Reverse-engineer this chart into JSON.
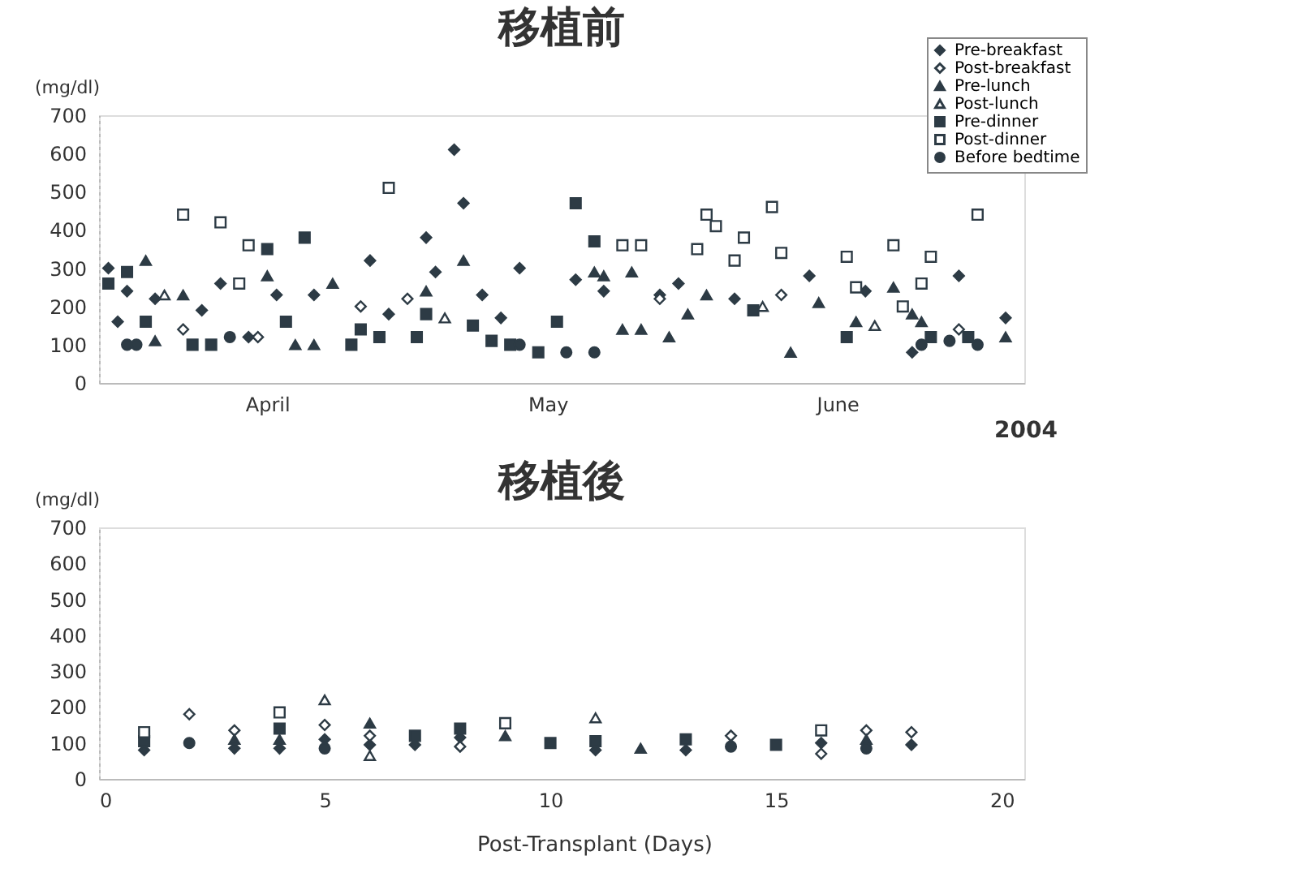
{
  "chart_data": [
    {
      "type": "scatter",
      "title": "移植前",
      "ylabel": "(mg/dl)",
      "xlabel": "2004",
      "xlim": [
        "2004-03-28",
        "2004-07-05"
      ],
      "xticks": [
        {
          "value": "2004-04-15",
          "label": "April"
        },
        {
          "value": "2004-05-15",
          "label": "May"
        },
        {
          "value": "2004-06-15",
          "label": "June"
        }
      ],
      "ylim": [
        0,
        700
      ],
      "yticks": [
        0,
        100,
        200,
        300,
        400,
        500,
        600,
        700
      ],
      "grid": false,
      "legend": "top right",
      "series": [
        {
          "name": "Pre-breakfast",
          "color": "#2d3b45",
          "marker": "diamond",
          "x": [
            "2004-03-29",
            "2004-03-30",
            "2004-03-31",
            "2004-04-03",
            "2004-04-08",
            "2004-04-10",
            "2004-04-13",
            "2004-04-16",
            "2004-04-20",
            "2004-04-26",
            "2004-04-28",
            "2004-05-02",
            "2004-05-03",
            "2004-05-05",
            "2004-05-06",
            "2004-05-08",
            "2004-05-10",
            "2004-05-12",
            "2004-05-18",
            "2004-05-21",
            "2004-05-27",
            "2004-05-29",
            "2004-06-04",
            "2004-06-12",
            "2004-06-18",
            "2004-06-23",
            "2004-06-28",
            "2004-07-03"
          ],
          "values": [
            300,
            160,
            240,
            220,
            190,
            260,
            120,
            230,
            230,
            320,
            180,
            380,
            290,
            610,
            470,
            230,
            170,
            300,
            270,
            240,
            230,
            260,
            220,
            280,
            240,
            80,
            280,
            170
          ]
        },
        {
          "name": "Post-breakfast",
          "color": "#ffffff",
          "marker": "diamond",
          "x": [
            "2004-04-06",
            "2004-04-14",
            "2004-04-25",
            "2004-04-30",
            "2004-05-27",
            "2004-06-09",
            "2004-06-28"
          ],
          "values": [
            140,
            120,
            200,
            220,
            220,
            230,
            140
          ]
        },
        {
          "name": "Pre-lunch",
          "color": "#2d3b45",
          "marker": "triangle",
          "x": [
            "2004-04-02",
            "2004-04-03",
            "2004-04-06",
            "2004-04-15",
            "2004-04-18",
            "2004-04-20",
            "2004-04-22",
            "2004-05-02",
            "2004-05-06",
            "2004-05-20",
            "2004-05-21",
            "2004-05-23",
            "2004-05-24",
            "2004-05-25",
            "2004-05-28",
            "2004-05-30",
            "2004-06-01",
            "2004-06-10",
            "2004-06-13",
            "2004-06-17",
            "2004-06-21",
            "2004-06-23",
            "2004-06-24",
            "2004-07-03"
          ],
          "values": [
            320,
            110,
            230,
            280,
            100,
            100,
            260,
            240,
            320,
            290,
            280,
            140,
            290,
            140,
            120,
            180,
            230,
            80,
            210,
            160,
            250,
            180,
            160,
            120
          ]
        },
        {
          "name": "Post-lunch",
          "color": "#ffffff",
          "marker": "triangle",
          "x": [
            "2004-04-04",
            "2004-05-04",
            "2004-06-07",
            "2004-06-19"
          ],
          "values": [
            230,
            170,
            200,
            150
          ]
        },
        {
          "name": "Pre-dinner",
          "color": "#2d3b45",
          "marker": "square",
          "x": [
            "2004-03-29",
            "2004-03-31",
            "2004-04-02",
            "2004-04-07",
            "2004-04-09",
            "2004-04-15",
            "2004-04-17",
            "2004-04-19",
            "2004-04-24",
            "2004-04-25",
            "2004-04-27",
            "2004-05-01",
            "2004-05-02",
            "2004-05-07",
            "2004-05-09",
            "2004-05-11",
            "2004-05-14",
            "2004-05-16",
            "2004-05-18",
            "2004-05-20",
            "2004-06-06",
            "2004-06-16",
            "2004-06-25",
            "2004-06-29"
          ],
          "values": [
            260,
            290,
            160,
            100,
            100,
            350,
            160,
            380,
            100,
            140,
            120,
            120,
            180,
            150,
            110,
            100,
            80,
            160,
            470,
            370,
            190,
            120,
            120,
            120
          ]
        },
        {
          "name": "Post-dinner",
          "color": "#ffffff",
          "marker": "square",
          "x": [
            "2004-04-06",
            "2004-04-10",
            "2004-04-12",
            "2004-04-13",
            "2004-04-28",
            "2004-05-23",
            "2004-05-25",
            "2004-05-31",
            "2004-06-01",
            "2004-06-02",
            "2004-06-04",
            "2004-06-05",
            "2004-06-08",
            "2004-06-09",
            "2004-06-16",
            "2004-06-17",
            "2004-06-21",
            "2004-06-22",
            "2004-06-24",
            "2004-06-25",
            "2004-06-30"
          ],
          "values": [
            440,
            420,
            260,
            360,
            510,
            360,
            360,
            350,
            440,
            410,
            320,
            380,
            460,
            340,
            330,
            250,
            360,
            200,
            260,
            330,
            440
          ]
        },
        {
          "name": "Before bedtime",
          "color": "#2d3b45",
          "marker": "circle",
          "x": [
            "2004-03-31",
            "2004-04-01",
            "2004-04-11",
            "2004-05-12",
            "2004-05-17",
            "2004-05-20",
            "2004-06-24",
            "2004-06-27",
            "2004-06-30"
          ],
          "values": [
            100,
            100,
            120,
            100,
            80,
            80,
            100,
            110,
            100
          ]
        }
      ]
    },
    {
      "type": "scatter",
      "title": "移植後",
      "ylabel": "(mg/dl)",
      "xlabel": "Post-Transplant (Days)",
      "xlim": [
        0,
        20.5
      ],
      "xticks": [
        0,
        5,
        10,
        15,
        20
      ],
      "ylim": [
        0,
        700
      ],
      "yticks": [
        0,
        100,
        200,
        300,
        400,
        500,
        600,
        700
      ],
      "grid": false,
      "x": [
        1,
        2,
        3,
        4,
        5,
        6,
        7,
        8,
        9,
        10,
        11,
        12,
        13,
        14,
        15,
        16,
        17,
        18
      ],
      "series": [
        {
          "color": "#2d3b45",
          "marker": "diamond",
          "values": [
            80,
            null,
            85,
            85,
            110,
            95,
            95,
            115,
            null,
            null,
            80,
            null,
            80,
            null,
            null,
            100,
            null,
            95
          ]
        },
        {
          "color": "#ffffff",
          "marker": "diamond",
          "values": [
            null,
            180,
            135,
            null,
            150,
            120,
            null,
            90,
            null,
            null,
            null,
            null,
            null,
            120,
            null,
            70,
            135,
            130
          ]
        },
        {
          "color": "#2d3b45",
          "marker": "triangle",
          "values": [
            null,
            null,
            110,
            110,
            null,
            155,
            null,
            null,
            120,
            null,
            null,
            85,
            null,
            null,
            null,
            null,
            110,
            null
          ]
        },
        {
          "color": "#ffffff",
          "marker": "triangle",
          "values": [
            null,
            null,
            null,
            null,
            220,
            65,
            null,
            null,
            null,
            null,
            170,
            null,
            null,
            null,
            null,
            null,
            null,
            null
          ]
        },
        {
          "color": "#2d3b45",
          "marker": "square",
          "values": [
            105,
            null,
            null,
            140,
            null,
            null,
            120,
            140,
            null,
            100,
            105,
            null,
            110,
            null,
            95,
            null,
            null,
            null
          ]
        },
        {
          "color": "#ffffff",
          "marker": "square",
          "values": [
            130,
            null,
            null,
            185,
            null,
            null,
            null,
            null,
            155,
            null,
            null,
            null,
            null,
            null,
            null,
            135,
            null,
            null
          ]
        },
        {
          "color": "#2d3b45",
          "marker": "circle",
          "values": [
            null,
            100,
            null,
            null,
            85,
            null,
            null,
            null,
            null,
            null,
            null,
            null,
            null,
            90,
            null,
            null,
            85,
            null
          ]
        }
      ]
    }
  ]
}
